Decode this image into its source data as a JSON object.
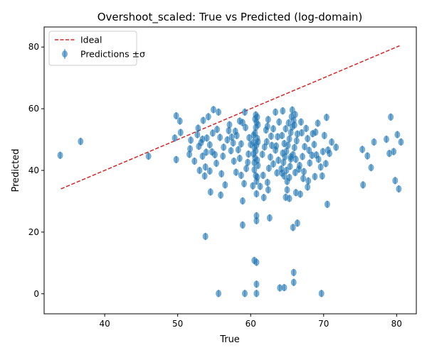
{
  "chart_data": {
    "type": "scatter",
    "title": "Overshoot_scaled: True vs Predicted (log-domain)",
    "xlabel": "True",
    "ylabel": "Predicted",
    "xlim": [
      31.7,
      82.7
    ],
    "ylim": [
      -6.5,
      86.5
    ],
    "xticks": [
      40,
      50,
      60,
      70,
      80
    ],
    "yticks": [
      0,
      20,
      40,
      60,
      80
    ],
    "grid": false,
    "legend": {
      "position": "top-left",
      "entries": [
        "Ideal",
        "Predictions ±σ"
      ]
    },
    "ideal_line": {
      "name": "Ideal",
      "color": "#d62728",
      "x": [
        34,
        80.4
      ],
      "y": [
        34,
        80.4
      ]
    },
    "series": [
      {
        "name": "Predictions ±σ",
        "color": "#1f77b4",
        "sigma": 1.2,
        "points": [
          [
            33.9,
            44.9
          ],
          [
            36.7,
            49.4
          ],
          [
            46,
            44.6
          ],
          [
            49.6,
            50.5
          ],
          [
            49.8,
            43.5
          ],
          [
            49.8,
            57.7
          ],
          [
            50.3,
            56
          ],
          [
            50.4,
            52.3
          ],
          [
            51.6,
            45.2
          ],
          [
            51.7,
            47
          ],
          [
            51.8,
            49.8
          ],
          [
            52.3,
            43
          ],
          [
            52.8,
            53.7
          ],
          [
            52.9,
            47.8
          ],
          [
            53,
            40
          ],
          [
            53.2,
            49
          ],
          [
            53.4,
            44.6
          ],
          [
            53.5,
            56.2
          ],
          [
            53.7,
            38.2
          ],
          [
            53.8,
            18.6
          ],
          [
            53.8,
            41.1
          ],
          [
            54,
            50.5
          ],
          [
            54.2,
            57.4
          ],
          [
            54.4,
            39.8
          ],
          [
            54.5,
            33
          ],
          [
            54.7,
            46
          ],
          [
            54.9,
            59.7
          ],
          [
            55.1,
            45.1
          ],
          [
            55.3,
            42.3
          ],
          [
            55.6,
            0.1
          ],
          [
            55.6,
            58.9
          ],
          [
            55.9,
            32
          ],
          [
            56,
            38.9
          ],
          [
            56.2,
            44.6
          ],
          [
            56.5,
            35.3
          ],
          [
            57,
            52.9
          ],
          [
            57.3,
            46.4
          ],
          [
            57.6,
            48.9
          ],
          [
            57.7,
            43
          ],
          [
            58,
            39.4
          ],
          [
            58.5,
            56
          ],
          [
            58.7,
            38.4
          ],
          [
            58.9,
            30.1
          ],
          [
            58.9,
            22.3
          ],
          [
            59.1,
            35.7
          ],
          [
            59.2,
            58.9
          ],
          [
            59.2,
            0.1
          ],
          [
            59.4,
            40.6
          ],
          [
            59.7,
            45.3
          ],
          [
            60,
            48.4
          ],
          [
            60.3,
            35
          ],
          [
            60.5,
            10.8
          ],
          [
            60.8,
            10.2
          ],
          [
            60.8,
            3.1
          ],
          [
            60.8,
            0.1
          ],
          [
            60.8,
            25.3
          ],
          [
            60.8,
            23.7
          ],
          [
            60.8,
            32.4
          ],
          [
            60.9,
            37.8
          ],
          [
            61.3,
            34.8
          ],
          [
            61.8,
            31.2
          ],
          [
            62.3,
            36.1
          ],
          [
            62.4,
            33.7
          ],
          [
            62.6,
            24.6
          ],
          [
            62.4,
            56.5
          ],
          [
            62.8,
            51.1
          ],
          [
            63.1,
            53.5
          ],
          [
            63.4,
            58.9
          ],
          [
            63.5,
            47.9
          ],
          [
            63.8,
            43.3
          ],
          [
            64,
            1.9
          ],
          [
            64.3,
            39.1
          ],
          [
            64.6,
            2
          ],
          [
            64.8,
            31.3
          ],
          [
            65,
            33.7
          ],
          [
            65.3,
            30.9
          ],
          [
            65.5,
            43.7
          ],
          [
            65.8,
            21.5
          ],
          [
            65.9,
            6.9
          ],
          [
            65.9,
            3.7
          ],
          [
            66,
            54.7
          ],
          [
            66.2,
            32.8
          ],
          [
            66.4,
            22.9
          ],
          [
            66.6,
            40.4
          ],
          [
            66.8,
            32.3
          ],
          [
            67,
            52.2
          ],
          [
            67.2,
            37.4
          ],
          [
            67.8,
            34.6
          ],
          [
            68,
            46.5
          ],
          [
            68.5,
            51.9
          ],
          [
            68.8,
            38
          ],
          [
            69,
            45
          ],
          [
            69.2,
            55.3
          ],
          [
            69.6,
            41.1
          ],
          [
            69.7,
            0.1
          ],
          [
            69.8,
            38.2
          ],
          [
            70.1,
            51.3
          ],
          [
            70.3,
            42.2
          ],
          [
            70.4,
            57.2
          ],
          [
            70.5,
            29
          ],
          [
            70.6,
            46.6
          ],
          [
            70.8,
            45.5
          ],
          [
            71.1,
            49.2
          ],
          [
            71.7,
            47.5
          ],
          [
            75.3,
            46.8
          ],
          [
            75.4,
            35.3
          ],
          [
            76,
            44.7
          ],
          [
            76.5,
            40.9
          ],
          [
            76.9,
            49.2
          ],
          [
            78.6,
            50.1
          ],
          [
            79,
            45.5
          ],
          [
            79.2,
            57.3
          ],
          [
            79.6,
            46.1
          ],
          [
            79.8,
            36.7
          ],
          [
            80.1,
            51.6
          ],
          [
            80.3,
            34
          ],
          [
            80.6,
            49.2
          ],
          [
            60.5,
            40.2
          ],
          [
            60.5,
            42.5
          ],
          [
            60.6,
            44.1
          ],
          [
            60.7,
            46.3
          ],
          [
            60.8,
            48.2
          ],
          [
            60.9,
            50.4
          ],
          [
            60.6,
            52.1
          ],
          [
            60.7,
            53.9
          ],
          [
            60.8,
            55.6
          ],
          [
            60.9,
            57.3
          ],
          [
            60.7,
            38.3
          ],
          [
            61,
            41.6
          ],
          [
            60.4,
            45.4
          ],
          [
            60.5,
            47.4
          ],
          [
            61,
            49.3
          ],
          [
            60.4,
            51.4
          ],
          [
            61,
            54.8
          ],
          [
            60.6,
            56.7
          ],
          [
            60.9,
            43.3
          ],
          [
            60.4,
            49.1
          ],
          [
            60.7,
            58.0
          ],
          [
            60.8,
            36.5
          ],
          [
            64.2,
            40.5
          ],
          [
            64.5,
            42.6
          ],
          [
            64.7,
            44.4
          ],
          [
            64.9,
            46.2
          ],
          [
            65.1,
            48.1
          ],
          [
            65.3,
            50.2
          ],
          [
            65.5,
            52.3
          ],
          [
            65.7,
            54.1
          ],
          [
            65.9,
            56.2
          ],
          [
            66.1,
            58.1
          ],
          [
            64.4,
            59.3
          ],
          [
            64.6,
            38.2
          ],
          [
            65.0,
            36.4
          ],
          [
            65.4,
            41.3
          ],
          [
            65.8,
            45.1
          ],
          [
            66.0,
            47.4
          ],
          [
            66.3,
            49.6
          ],
          [
            64.3,
            51.3
          ],
          [
            64.8,
            53.5
          ],
          [
            65.2,
            55.4
          ],
          [
            65.6,
            57.4
          ],
          [
            66.2,
            43.6
          ],
          [
            64.9,
            40.0
          ],
          [
            65.3,
            37.7
          ],
          [
            65.7,
            59.6
          ],
          [
            66.4,
            51.8
          ],
          [
            64.6,
            48.7
          ],
          [
            65.5,
            44.4
          ],
          [
            66.1,
            39.3
          ],
          [
            64.4,
            45.6
          ],
          [
            56.8,
            49.9
          ],
          [
            57.4,
            50.8
          ],
          [
            58.1,
            51.3
          ],
          [
            58.7,
            48.6
          ],
          [
            59.3,
            53.9
          ],
          [
            59.6,
            42.6
          ],
          [
            58.3,
            46.7
          ],
          [
            57.9,
            52.7
          ],
          [
            56.3,
            47.5
          ],
          [
            55.8,
            50.7
          ],
          [
            55.4,
            53.3
          ],
          [
            54.8,
            52.1
          ],
          [
            54.4,
            48.3
          ],
          [
            53.9,
            45.9
          ],
          [
            53.4,
            50.1
          ],
          [
            52.7,
            51.6
          ],
          [
            57.1,
            54.8
          ],
          [
            58.9,
            55.5
          ],
          [
            59.8,
            50.6
          ],
          [
            58.5,
            43.9
          ],
          [
            61.6,
            45.2
          ],
          [
            61.9,
            47.6
          ],
          [
            62.2,
            49.3
          ],
          [
            62.7,
            44.3
          ],
          [
            63.1,
            42.1
          ],
          [
            63.4,
            46.6
          ],
          [
            63.7,
            50.9
          ],
          [
            62.1,
            53.1
          ],
          [
            62.5,
            40.7
          ],
          [
            63.9,
            55.7
          ],
          [
            61.7,
            38.4
          ],
          [
            62.9,
            48.1
          ],
          [
            63.6,
            39.2
          ],
          [
            62.3,
            54.3
          ],
          [
            66.7,
            41.6
          ],
          [
            67.1,
            44.5
          ],
          [
            67.4,
            47.7
          ],
          [
            67.8,
            50.3
          ],
          [
            68.1,
            42.4
          ],
          [
            68.4,
            44.9
          ],
          [
            67.6,
            53.6
          ],
          [
            66.9,
            55.7
          ],
          [
            67.3,
            39.6
          ],
          [
            68.7,
            48.4
          ],
          [
            69.3,
            43.6
          ],
          [
            69.9,
            46.1
          ],
          [
            68.9,
            52.4
          ],
          [
            67.9,
            36.6
          ]
        ]
      }
    ]
  }
}
